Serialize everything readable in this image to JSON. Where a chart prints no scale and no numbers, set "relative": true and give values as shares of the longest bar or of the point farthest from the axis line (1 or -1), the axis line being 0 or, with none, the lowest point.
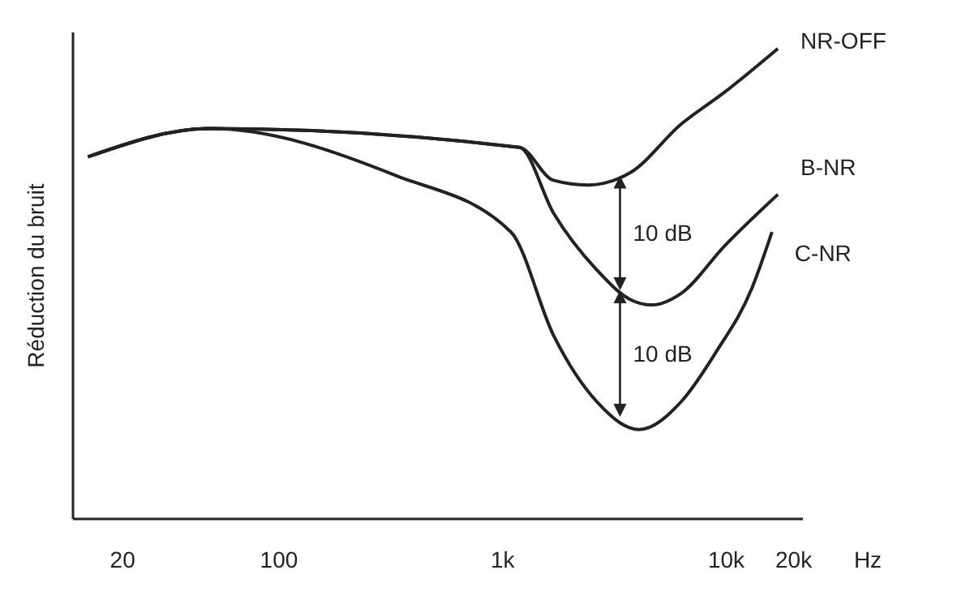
{
  "chart_data": {
    "type": "line",
    "relative": true,
    "ylabel": "Réduction du bruit",
    "xlabel": "Hz",
    "log": "x",
    "xlim": [
      12,
      22000
    ],
    "xticks": [
      {
        "value": 20,
        "label": "20"
      },
      {
        "value": 100,
        "label": "100"
      },
      {
        "value": 1000,
        "label": "1k"
      },
      {
        "value": 10000,
        "label": "10k"
      },
      {
        "value": 20000,
        "label": "20k"
      }
    ],
    "series": [
      {
        "name": "NR-OFF",
        "color": "#222222",
        "x": [
          14,
          49,
          1190,
          1690,
          2410,
          3740,
          6300,
          9800,
          17000
        ],
        "values": [
          0.77,
          0.83,
          0.79,
          0.72,
          0.71,
          0.737,
          0.84,
          0.907,
          1
        ]
      },
      {
        "name": "B-NR",
        "color": "#222222",
        "x": [
          14,
          49,
          1190,
          1690,
          2630,
          3740,
          4650,
          6300,
          9800,
          17000
        ],
        "values": [
          0.77,
          0.83,
          0.79,
          0.65,
          0.53,
          0.466,
          0.455,
          0.48,
          0.58,
          0.69
        ]
      },
      {
        "name": "C-NR",
        "color": "#222222",
        "x": [
          14,
          49,
          334,
          1090,
          1690,
          2630,
          4080,
          6300,
          9000,
          13000,
          16000
        ],
        "values": [
          0.77,
          0.83,
          0.73,
          0.61,
          0.39,
          0.25,
          0.19,
          0.25,
          0.355,
          0.49,
          0.61
        ]
      }
    ],
    "annotations": [
      "10 dB",
      "10 dB"
    ],
    "legend": false,
    "grid": false,
    "marker": "none",
    "line_style": "solid"
  }
}
